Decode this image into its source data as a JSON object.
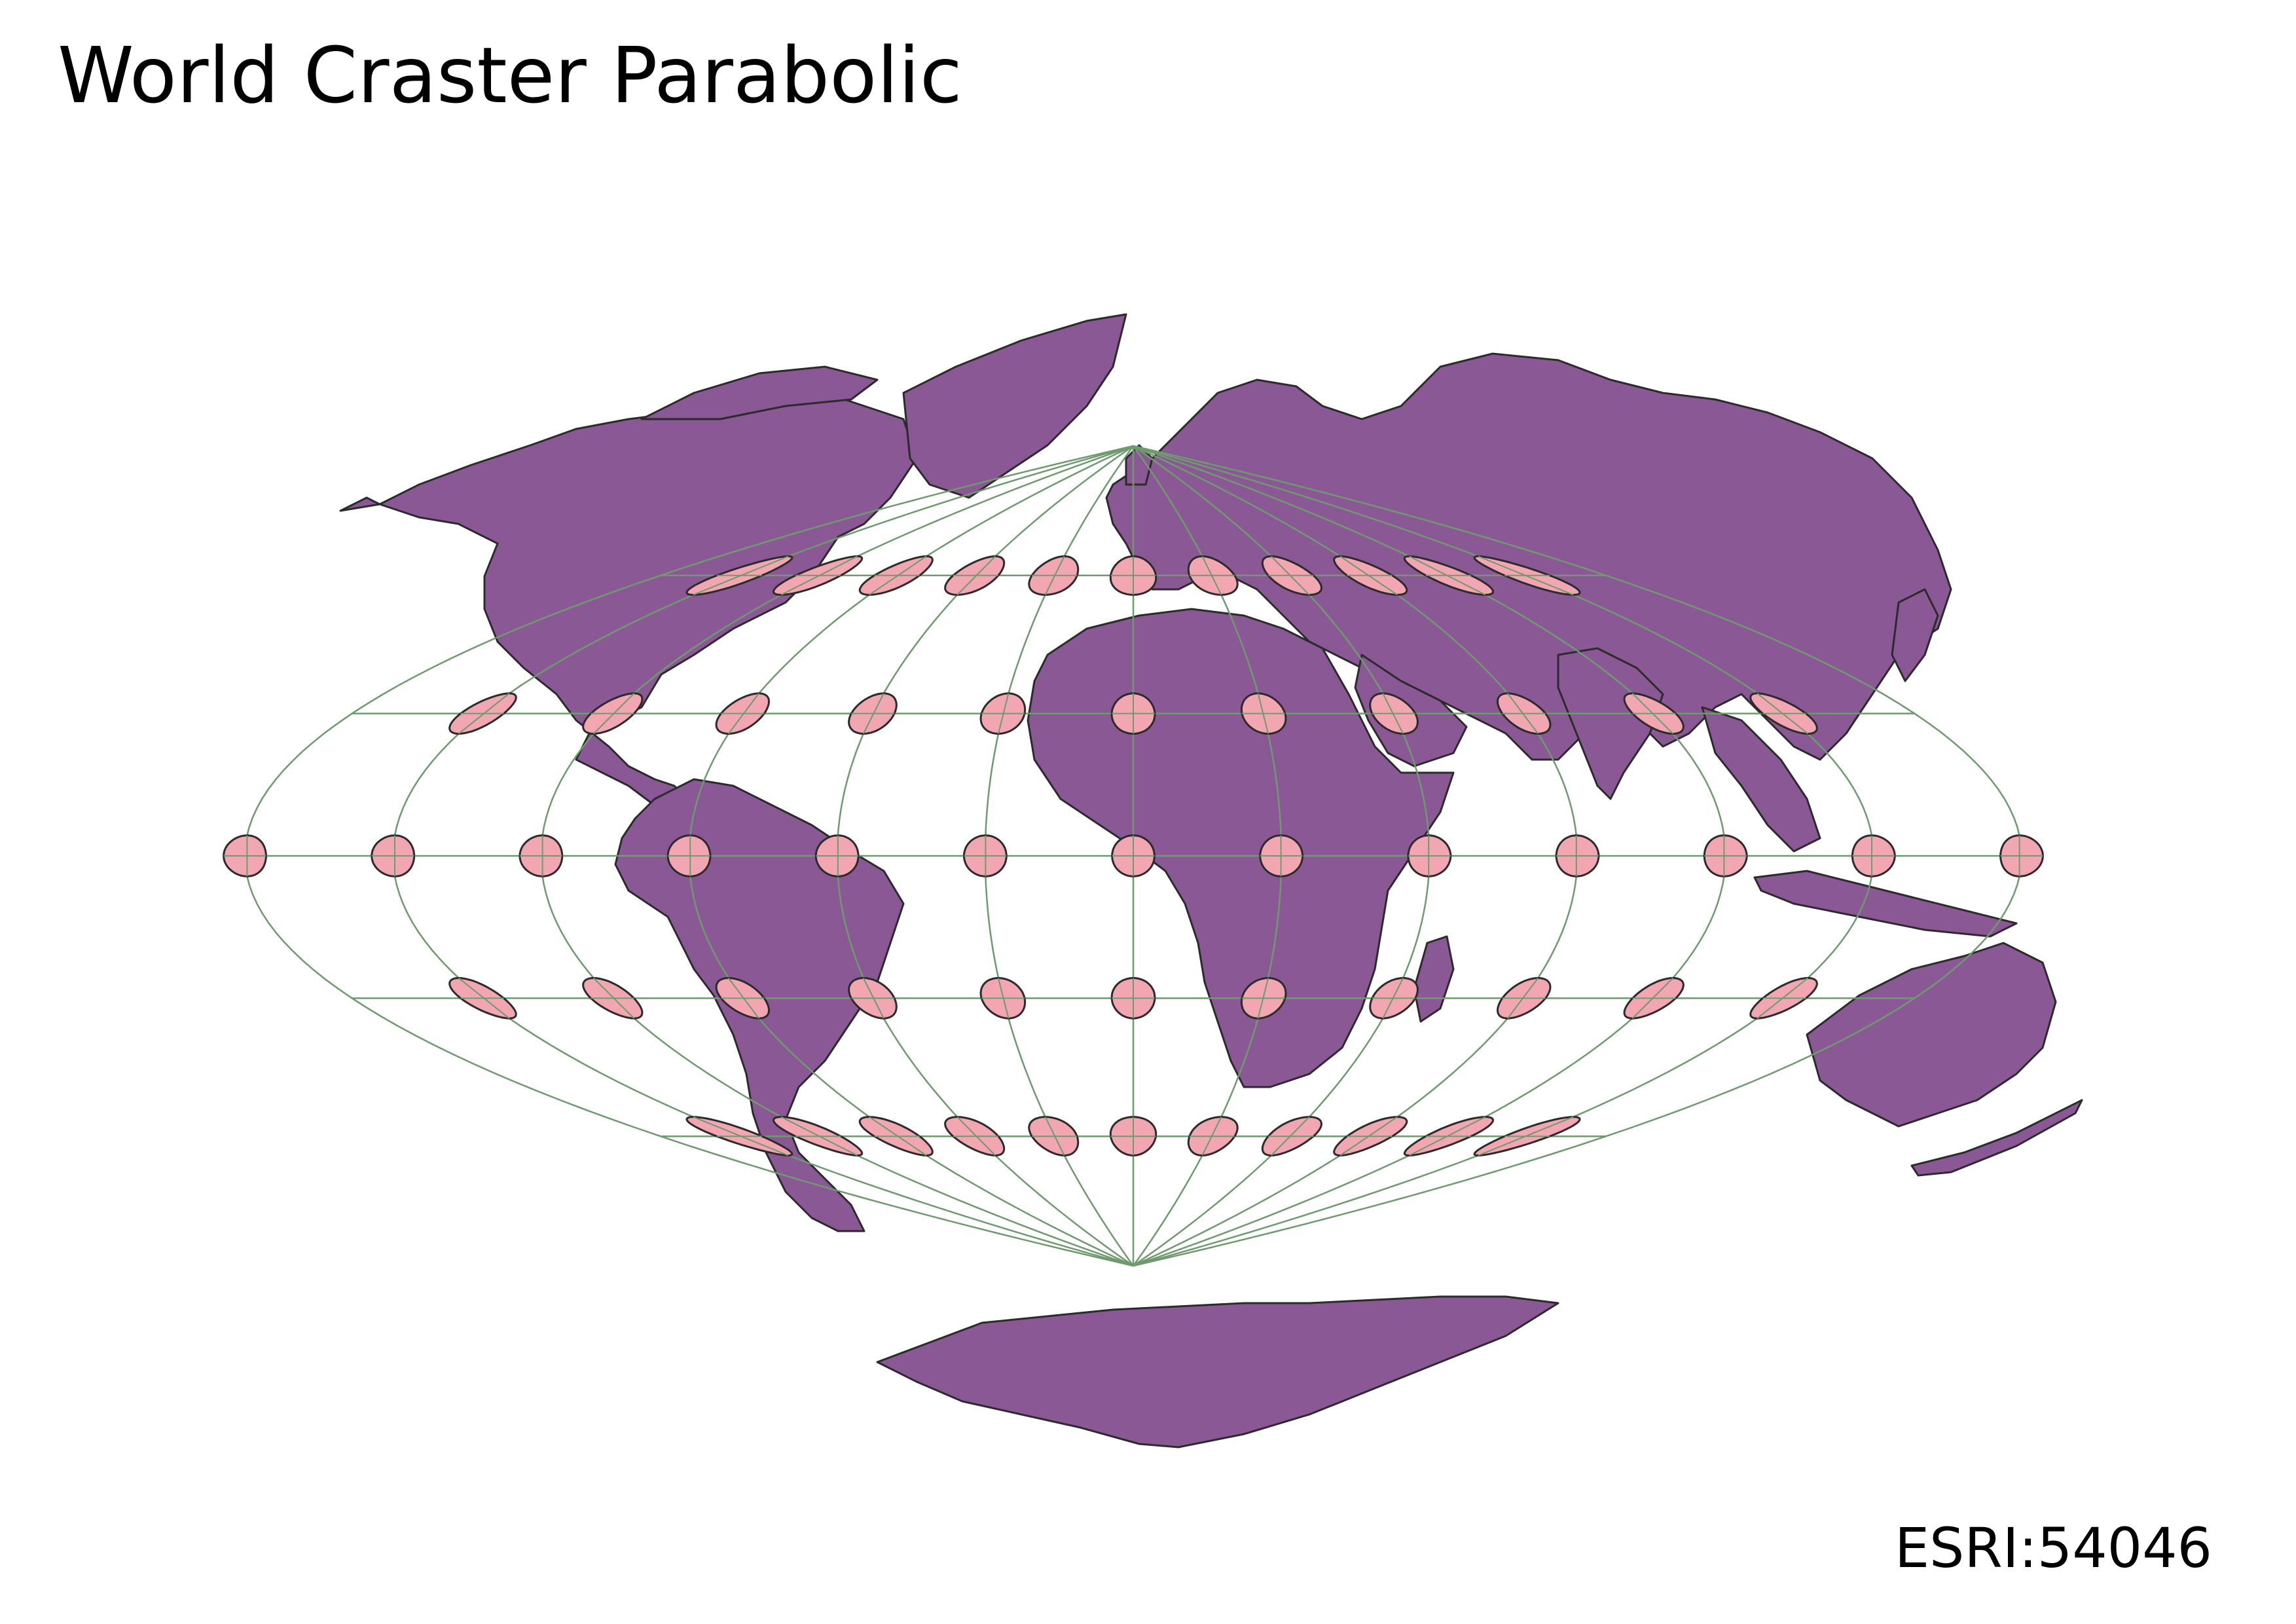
{
  "map": {
    "title": "World Craster Parabolic",
    "crs_code": "ESRI:54046",
    "land_color": "#8B5896",
    "border_color": "#2b2b2b",
    "graticule_color": "#6E9A6E",
    "indicatrix_fill": "#F2A6B1",
    "indicatrix_stroke": "#2b2b2b",
    "graticule": {
      "meridians_deg": [
        -180,
        -150,
        -120,
        -90,
        -60,
        -30,
        0,
        30,
        60,
        90,
        120,
        150,
        180
      ],
      "parallels_deg": [
        -60,
        -30,
        0,
        30,
        60
      ]
    },
    "indicatrices": {
      "longitudes_deg_lat60": [
        -150,
        -120,
        -90,
        -60,
        -30,
        0,
        30,
        60,
        90,
        120,
        150
      ],
      "longitudes_deg_lat30": [
        -150,
        -120,
        -90,
        -60,
        -30,
        0,
        30,
        60,
        90,
        120,
        150
      ],
      "longitudes_deg_lat0": [
        -180,
        -150,
        -120,
        -90,
        -60,
        -30,
        0,
        30,
        60,
        90,
        120,
        150,
        180
      ],
      "latitudes_deg": [
        60,
        30,
        0,
        -30,
        -60
      ]
    }
  }
}
